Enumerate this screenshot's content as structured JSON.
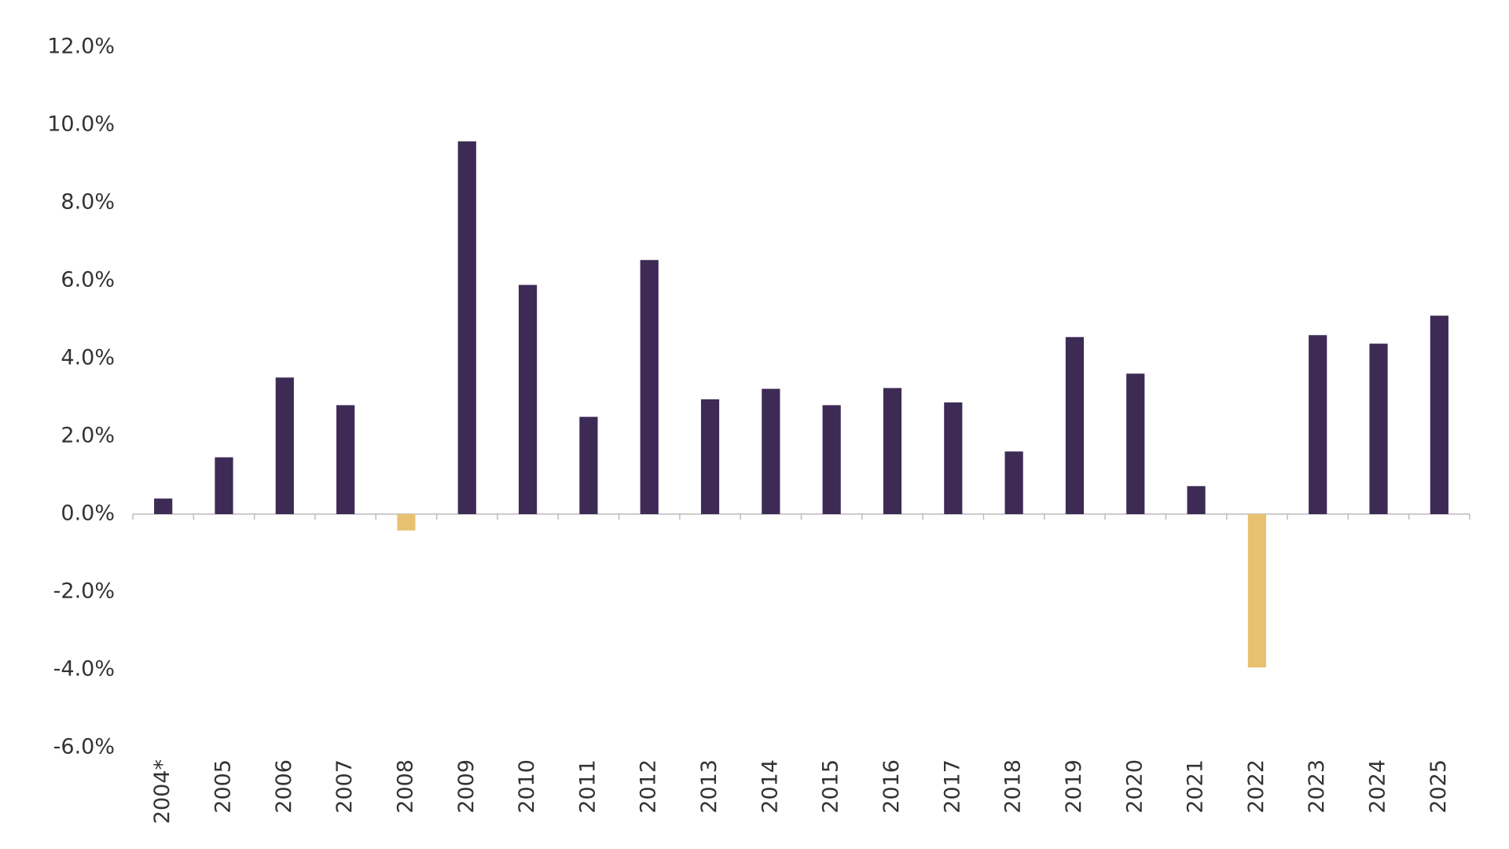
{
  "chart_data": {
    "type": "bar",
    "categories": [
      "2004*",
      "2005",
      "2006",
      "2007",
      "2008",
      "2009",
      "2010",
      "2011",
      "2012",
      "2013",
      "2014",
      "2015",
      "2016",
      "2017",
      "2018",
      "2019",
      "2020",
      "2021",
      "2022",
      "2023",
      "2024",
      "2025"
    ],
    "values": [
      0.4,
      1.46,
      3.51,
      2.8,
      -0.42,
      9.58,
      5.89,
      2.5,
      6.53,
      2.95,
      3.22,
      2.8,
      3.24,
      2.87,
      1.61,
      4.55,
      3.61,
      0.72,
      -3.94,
      4.6,
      4.38,
      5.1
    ],
    "color": "#3d2b56",
    "negative_color": "#e8c170",
    "ylim": [
      -6,
      12
    ],
    "yticks": [
      {
        "value": -6,
        "label": "-6.0%"
      },
      {
        "value": -4,
        "label": "-4.0%"
      },
      {
        "value": -2,
        "label": "-2.0%"
      },
      {
        "value": 0,
        "label": "0.0%"
      },
      {
        "value": 2,
        "label": "2.0%"
      },
      {
        "value": 4,
        "label": "4.0%"
      },
      {
        "value": 6,
        "label": "6.0%"
      },
      {
        "value": 8,
        "label": "8.0%"
      },
      {
        "value": 10,
        "label": "10.0%"
      },
      {
        "value": 12,
        "label": "12.0%"
      }
    ],
    "grid": false
  }
}
